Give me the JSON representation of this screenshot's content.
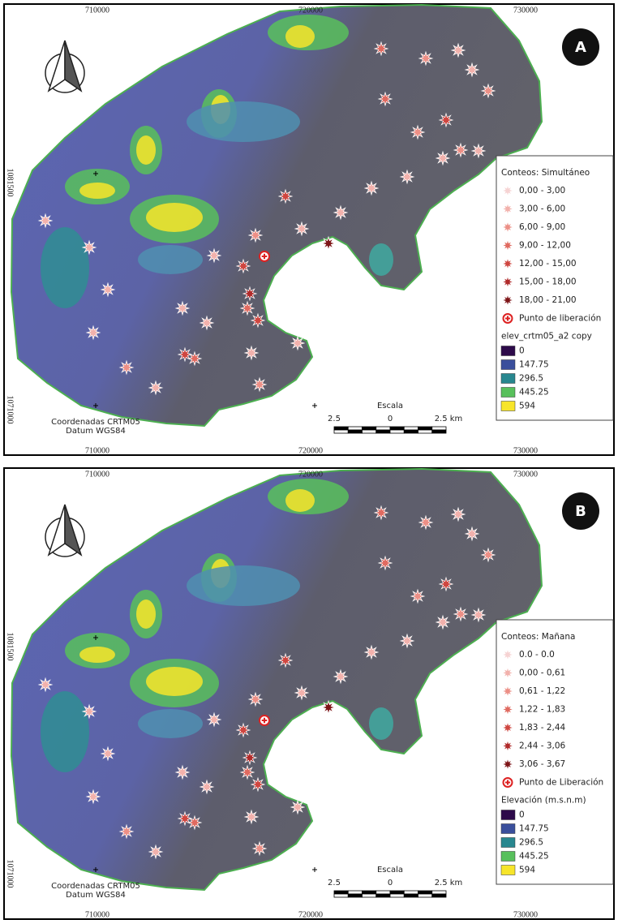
{
  "panels": [
    {
      "letter": "A",
      "coords": {
        "top": [
          "710000",
          "720000",
          "730000"
        ],
        "bottom": [
          "710000",
          "720000",
          "730000"
        ],
        "left": [
          "1081500",
          "1071000"
        ]
      },
      "legend": {
        "counts_title": "Conteos: Simultáneo",
        "counts": [
          "0,00 - 3,00",
          "3,00 - 6,00",
          "6,00 - 9,00",
          "9,00 - 12,00",
          "12,00 - 15,00",
          "15,00 - 18,00",
          "18,00 - 21,00"
        ],
        "release": "Punto de liberación",
        "elevation_title": "elev_crtm05_a2 copy",
        "elevation": [
          "0",
          "147.75",
          "296.5",
          "445.25",
          "594"
        ]
      },
      "scale": {
        "title": "Escala",
        "labels": [
          "2.5",
          "0",
          "2.5 km"
        ]
      },
      "crs": [
        "Coordenadas CRTM05",
        "Datum WGS84"
      ]
    },
    {
      "letter": "B",
      "coords": {
        "top": [
          "710000",
          "720000",
          "730000"
        ],
        "bottom": [
          "710000",
          "720000",
          "730000"
        ],
        "left": [
          "1081500",
          "1071000"
        ]
      },
      "legend": {
        "counts_title": "Conteos: Mañana",
        "counts": [
          "0.0 - 0.0",
          "0,00 - 0,61",
          "0,61 - 1,22",
          "1,22 - 1,83",
          "1,83 - 2,44",
          "2,44 - 3,06",
          "3,06 - 3,67"
        ],
        "release": "Punto de Liberación",
        "elevation_title": "Elevación (m.s.n.m)",
        "elevation": [
          "0",
          "147.75",
          "296.5",
          "445.25",
          "594"
        ]
      },
      "scale": {
        "title": "Escala",
        "labels": [
          "2.5",
          "0",
          "2.5 km"
        ]
      },
      "crs": [
        "Coordenadas CRTM05",
        "Datum WGS84"
      ]
    }
  ]
}
